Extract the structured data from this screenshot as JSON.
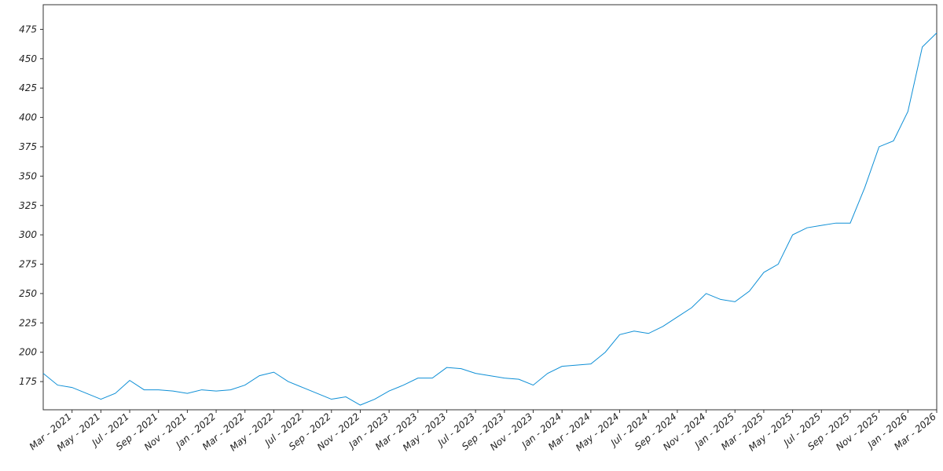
{
  "chart_data": {
    "type": "line",
    "x": [
      "2021-01",
      "2021-02",
      "2021-03",
      "2021-04",
      "2021-05",
      "2021-06",
      "2021-07",
      "2021-08",
      "2021-09",
      "2021-10",
      "2021-11",
      "2021-12",
      "2022-01",
      "2022-02",
      "2022-03",
      "2022-04",
      "2022-05",
      "2022-06",
      "2022-07",
      "2022-08",
      "2022-09",
      "2022-10",
      "2022-11",
      "2022-12",
      "2023-01",
      "2023-02",
      "2023-03",
      "2023-04",
      "2023-05",
      "2023-06",
      "2023-07",
      "2023-08",
      "2023-09",
      "2023-10",
      "2023-11",
      "2023-12",
      "2024-01",
      "2024-02",
      "2024-03",
      "2024-04",
      "2024-05",
      "2024-06",
      "2024-07",
      "2024-08",
      "2024-09",
      "2024-10",
      "2024-11",
      "2024-12",
      "2025-01",
      "2025-02",
      "2025-03",
      "2025-04",
      "2025-05",
      "2025-06",
      "2025-07",
      "2025-08",
      "2025-09",
      "2025-10",
      "2025-11",
      "2025-12",
      "2026-01",
      "2026-02",
      "2026-03"
    ],
    "series": [
      {
        "color": "#0e8fd6",
        "values": [
          182,
          172,
          170,
          165,
          160,
          165,
          176,
          168,
          168,
          167,
          165,
          168,
          167,
          168,
          172,
          180,
          183,
          175,
          170,
          165,
          160,
          162,
          155,
          160,
          167,
          172,
          178,
          178,
          187,
          186,
          182,
          180,
          178,
          177,
          172,
          182,
          188,
          189,
          190,
          200,
          215,
          218,
          216,
          222,
          230,
          238,
          250,
          245,
          243,
          252,
          268,
          275,
          300,
          306,
          308,
          310,
          310,
          340,
          375,
          380,
          405,
          460,
          472
        ]
      }
    ],
    "xlim": [
      "2021-01",
      "2026-03"
    ],
    "xticks": [
      {
        "value": "2021-03",
        "label": "Mar - 2021"
      },
      {
        "value": "2021-05",
        "label": "May - 2021"
      },
      {
        "value": "2021-07",
        "label": "Jul - 2021"
      },
      {
        "value": "2021-09",
        "label": "Sep - 2021"
      },
      {
        "value": "2021-11",
        "label": "Nov - 2021"
      },
      {
        "value": "2022-01",
        "label": "Jan - 2022"
      },
      {
        "value": "2022-03",
        "label": "Mar - 2022"
      },
      {
        "value": "2022-05",
        "label": "May - 2022"
      },
      {
        "value": "2022-07",
        "label": "Jul - 2022"
      },
      {
        "value": "2022-09",
        "label": "Sep - 2022"
      },
      {
        "value": "2022-11",
        "label": "Nov - 2022"
      },
      {
        "value": "2023-01",
        "label": "Jan - 2023"
      },
      {
        "value": "2023-03",
        "label": "Mar - 2023"
      },
      {
        "value": "2023-05",
        "label": "May - 2023"
      },
      {
        "value": "2023-07",
        "label": "Jul - 2023"
      },
      {
        "value": "2023-09",
        "label": "Sep - 2023"
      },
      {
        "value": "2023-11",
        "label": "Nov - 2023"
      },
      {
        "value": "2024-01",
        "label": "Jan - 2024"
      },
      {
        "value": "2024-03",
        "label": "Mar - 2024"
      },
      {
        "value": "2024-05",
        "label": "May - 2024"
      },
      {
        "value": "2024-07",
        "label": "Jul - 2024"
      },
      {
        "value": "2024-09",
        "label": "Sep - 2024"
      },
      {
        "value": "2024-11",
        "label": "Nov - 2024"
      },
      {
        "value": "2025-01",
        "label": "Jan - 2025"
      },
      {
        "value": "2025-03",
        "label": "Mar - 2025"
      },
      {
        "value": "2025-05",
        "label": "May - 2025"
      },
      {
        "value": "2025-07",
        "label": "Jul - 2025"
      },
      {
        "value": "2025-09",
        "label": "Sep - 2025"
      },
      {
        "value": "2025-11",
        "label": "Nov - 2025"
      },
      {
        "value": "2026-01",
        "label": "Jan - 2026"
      },
      {
        "value": "2026-03",
        "label": "Mar - 2026"
      }
    ],
    "ylim": [
      151,
      496
    ],
    "yticks": [
      175,
      200,
      225,
      250,
      275,
      300,
      325,
      350,
      375,
      400,
      425,
      450,
      475
    ],
    "grid": false
  }
}
